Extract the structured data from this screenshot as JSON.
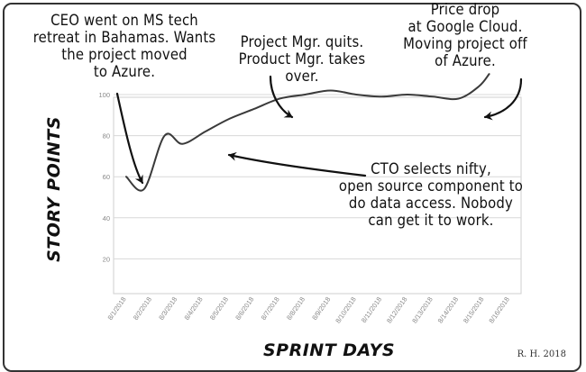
{
  "chart_data": {
    "type": "line",
    "xlabel": "SPRINT DAYS",
    "ylabel": "STORY POINTS",
    "ylim": [
      10,
      110
    ],
    "y_ticks": [
      20,
      40,
      60,
      80,
      100
    ],
    "x_categories": [
      "8/1/2018",
      "8/2/2018",
      "8/3/2018",
      "8/4/2018",
      "8/5/2018",
      "8/6/2018",
      "8/7/2018",
      "8/8/2018",
      "8/9/2018",
      "8/10/2018",
      "8/11/2018",
      "8/12/2018",
      "8/13/2018",
      "8/14/2018",
      "8/15/2018",
      "8/16/2018"
    ],
    "series": [
      {
        "x": [
          0,
          0.7,
          1.5,
          2.2,
          3.1,
          4.0,
          5.0,
          6.0,
          7.0,
          8.0,
          9.0,
          10.0,
          11.0,
          12.0,
          13.0,
          13.8,
          14.2
        ],
        "values": [
          60,
          54,
          80,
          76,
          82,
          88,
          93,
          98,
          100,
          102,
          100,
          99,
          100,
          99,
          98,
          104,
          110
        ]
      }
    ],
    "grid": true,
    "line_color": "#3a3a3a",
    "grid_color": "#d8d8d8"
  },
  "annotations": {
    "ceo": [
      "CEO went on MS tech",
      "retreat in Bahamas. Wants",
      "the project moved",
      "to Azure."
    ],
    "pm": [
      "Project Mgr. quits.",
      "Product Mgr. takes",
      "over."
    ],
    "price": [
      "Price drop",
      "at Google Cloud.",
      "Moving project off",
      "of Azure."
    ],
    "cto": [
      "CTO selects nifty,",
      "open source component to",
      "do data access. Nobody",
      "can get it to work."
    ]
  },
  "signature": "R. H. 2018"
}
